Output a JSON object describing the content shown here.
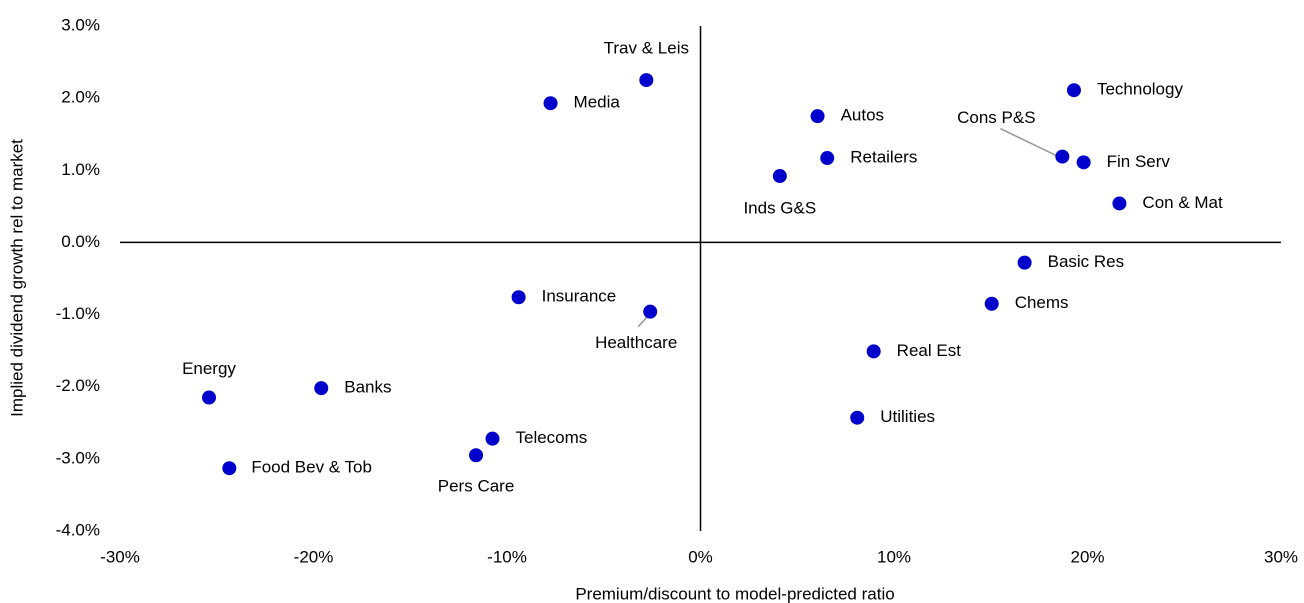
{
  "chart_data": {
    "type": "scatter",
    "x_label": "Premium/discount to model-predicted ratio",
    "y_label": "Implied dividend growth rel to market",
    "color": "#0000cc",
    "labels": [
      "Trav & Leis",
      "Media",
      "Autos",
      "Technology",
      "Cons P&S",
      "Fin Serv",
      "Retailers",
      "Inds G&S",
      "Con & Mat",
      "Basic Res",
      "Chems",
      "Insurance",
      "Healthcare",
      "Real Est",
      "Utilities",
      "Energy",
      "Banks",
      "Telecoms",
      "Pers Care",
      "Food Bev & Tob"
    ],
    "x": [
      -2.8,
      -7.75,
      6.05,
      19.3,
      18.7,
      19.8,
      6.55,
      4.1,
      21.65,
      16.75,
      15.05,
      -9.4,
      -2.6,
      8.95,
      8.1,
      -25.4,
      -19.6,
      -10.75,
      -11.6,
      -24.35
    ],
    "values": [
      2.25,
      1.93,
      1.75,
      2.11,
      1.19,
      1.11,
      1.17,
      0.92,
      0.54,
      -0.28,
      -0.85,
      -0.76,
      -0.96,
      -1.51,
      -2.43,
      -2.15,
      -2.02,
      -2.72,
      -2.95,
      -3.13
    ],
    "xlim": [
      -30,
      30
    ],
    "ylim": [
      -4,
      3
    ],
    "xticks": [
      {
        "value": -30,
        "label": "-30%"
      },
      {
        "value": -20,
        "label": "-20%"
      },
      {
        "value": -10,
        "label": "-10%"
      },
      {
        "value": 0,
        "label": "0%"
      },
      {
        "value": 10,
        "label": "10%"
      },
      {
        "value": 20,
        "label": "20%"
      },
      {
        "value": 30,
        "label": "30%"
      }
    ],
    "yticks": [
      {
        "value": -4,
        "label": "-4.0%"
      },
      {
        "value": -3,
        "label": "-3.0%"
      },
      {
        "value": -2,
        "label": "-2.0%"
      },
      {
        "value": -1,
        "label": "-1.0%"
      },
      {
        "value": 0,
        "label": "0.0%"
      },
      {
        "value": 1,
        "label": "1.0%"
      },
      {
        "value": 2,
        "label": "2.0%"
      },
      {
        "value": 3,
        "label": "3.0%"
      }
    ]
  }
}
